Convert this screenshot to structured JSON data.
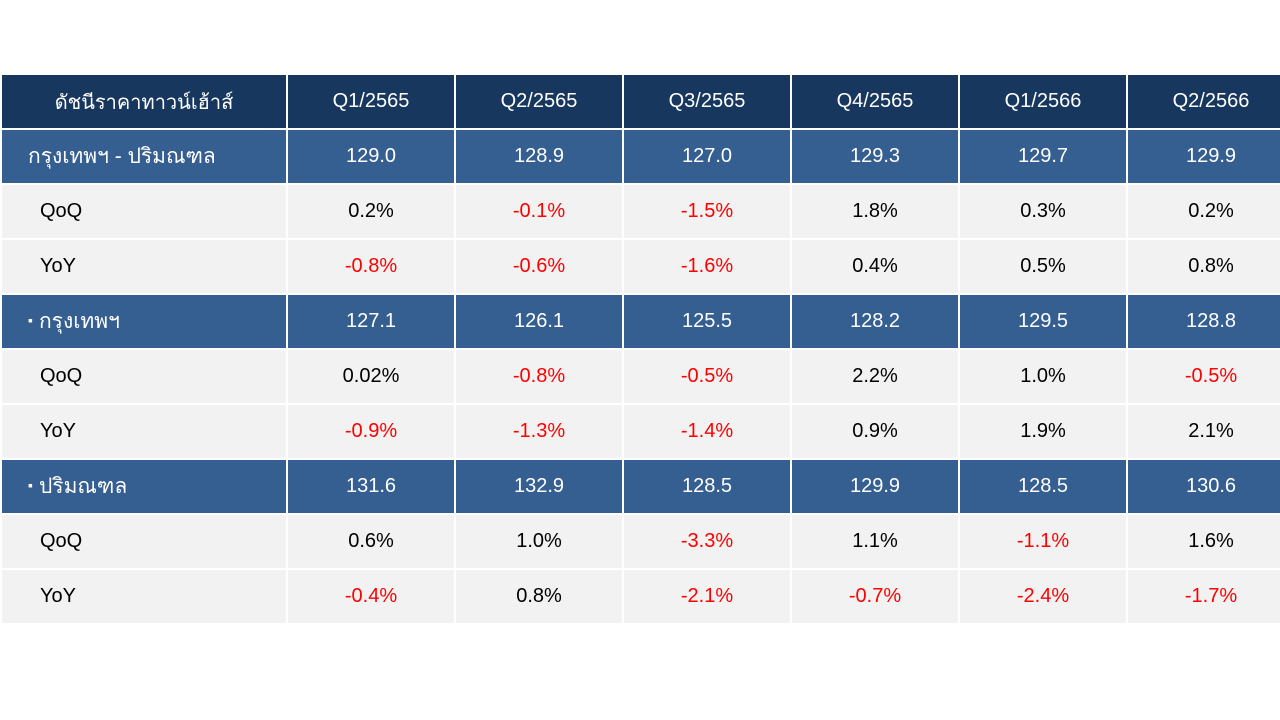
{
  "table": {
    "corner_label": "ดัชนีราคาทาวน์เฮ้าส์",
    "columns": [
      "Q1/2565",
      "Q2/2565",
      "Q3/2565",
      "Q4/2565",
      "Q1/2566",
      "Q2/2566"
    ],
    "rows": [
      {
        "label": "กรุงเทพฯ - ปริมณฑล",
        "type": "main",
        "bullet": "",
        "cells": [
          "129.0",
          "128.9",
          "127.0",
          "129.3",
          "129.7",
          "129.9"
        ]
      },
      {
        "label": "QoQ",
        "type": "sub",
        "bullet": "",
        "cells": [
          "0.2%",
          "-0.1%",
          "-1.5%",
          "1.8%",
          "0.3%",
          "0.2%"
        ]
      },
      {
        "label": "YoY",
        "type": "sub",
        "bullet": "",
        "cells": [
          "-0.8%",
          "-0.6%",
          "-1.6%",
          "0.4%",
          "0.5%",
          "0.8%"
        ]
      },
      {
        "label": "กรุงเทพฯ",
        "type": "main",
        "bullet": "▪",
        "cells": [
          "127.1",
          "126.1",
          "125.5",
          "128.2",
          "129.5",
          "128.8"
        ]
      },
      {
        "label": "QoQ",
        "type": "sub",
        "bullet": "",
        "cells": [
          "0.02%",
          "-0.8%",
          "-0.5%",
          "2.2%",
          "1.0%",
          "-0.5%"
        ]
      },
      {
        "label": "YoY",
        "type": "sub",
        "bullet": "",
        "cells": [
          "-0.9%",
          "-1.3%",
          "-1.4%",
          "0.9%",
          "1.9%",
          "2.1%"
        ]
      },
      {
        "label": "ปริมณฑล",
        "type": "main",
        "bullet": "▪",
        "cells": [
          "131.6",
          "132.9",
          "128.5",
          "129.9",
          "128.5",
          "130.6"
        ]
      },
      {
        "label": "QoQ",
        "type": "sub",
        "bullet": "",
        "cells": [
          "0.6%",
          "1.0%",
          "-3.3%",
          "1.1%",
          "-1.1%",
          "1.6%"
        ]
      },
      {
        "label": "YoY",
        "type": "sub",
        "bullet": "",
        "cells": [
          "-0.4%",
          "0.8%",
          "-2.1%",
          "-0.7%",
          "-2.4%",
          "-1.7%"
        ]
      }
    ]
  },
  "colors": {
    "header_bg": "#17375e",
    "main_row_bg": "#355e91",
    "sub_row_bg": "#f2f2f2",
    "negative_text": "#ff0000"
  }
}
